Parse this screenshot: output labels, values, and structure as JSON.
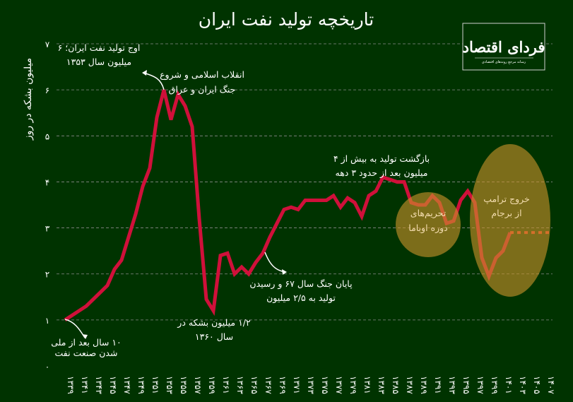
{
  "chart_data": {
    "type": "line",
    "title": "تاریخچه تولید نفت ایران",
    "ylabel": "میلیون بشکه در روز",
    "xlabel": "",
    "ylim": [
      0,
      7
    ],
    "xlim": [
      1339,
      1408
    ],
    "grid": true,
    "y_ticks": [
      "۰",
      "۱",
      "۲",
      "۳",
      "۴",
      "۵",
      "۶",
      "۷"
    ],
    "x_ticks": [
      1339,
      1341,
      1343,
      1345,
      1347,
      1349,
      1351,
      1353,
      1355,
      1357,
      1359,
      1361,
      1363,
      1365,
      1367,
      1369,
      1371,
      1373,
      1375,
      1377,
      1379,
      1381,
      1383,
      1385,
      1387,
      1389,
      1391,
      1393,
      1395,
      1397,
      1399,
      1401,
      1403,
      1405,
      1407
    ],
    "x_tick_labels": [
      "۱۳۳۹",
      "۱۳۴۱",
      "۱۳۴۳",
      "۱۳۴۵",
      "۱۳۴۷",
      "۱۳۴۹",
      "۱۳۵۱",
      "۱۳۵۳",
      "۱۳۵۵",
      "۱۳۵۷",
      "۱۳۵۹",
      "۱۳۶۱",
      "۱۳۶۳",
      "۱۳۶۵",
      "۱۳۶۷",
      "۱۳۶۹",
      "۱۳۷۱",
      "۱۳۷۳",
      "۱۳۷۵",
      "۱۳۷۷",
      "۱۳۷۹",
      "۱۳۸۱",
      "۱۳۸۳",
      "۱۳۸۵",
      "۱۳۸۷",
      "۱۳۸۹",
      "۱۳۹۱",
      "۱۳۹۳",
      "۱۳۹۵",
      "۱۳۹۷",
      "۱۳۹۹",
      "۱۴۰۱",
      "۱۴۰۳",
      "۱۴۰۵",
      "۱۴۰۷"
    ],
    "series": [
      {
        "x": [
          1339,
          1340,
          1341,
          1342,
          1343,
          1344,
          1345,
          1346,
          1347,
          1348,
          1349,
          1350,
          1351,
          1352,
          1353,
          1354,
          1355,
          1356,
          1357,
          1358,
          1359,
          1360,
          1361,
          1362,
          1363,
          1364,
          1365,
          1366,
          1367,
          1368,
          1369,
          1370,
          1371,
          1372,
          1373,
          1374,
          1375,
          1376,
          1377,
          1378,
          1379,
          1380,
          1381,
          1382,
          1383,
          1384,
          1385,
          1386,
          1387,
          1388,
          1389,
          1390,
          1391,
          1392,
          1393,
          1394,
          1395,
          1396,
          1397,
          1398,
          1399,
          1400,
          1401,
          1402
        ],
        "values": [
          1.0,
          1.1,
          1.2,
          1.3,
          1.45,
          1.6,
          1.75,
          2.1,
          2.3,
          2.8,
          3.3,
          3.9,
          4.3,
          5.4,
          6.0,
          5.35,
          5.9,
          5.65,
          5.2,
          3.2,
          1.45,
          1.2,
          2.4,
          2.45,
          2.0,
          2.15,
          2.0,
          2.25,
          2.45,
          2.8,
          3.1,
          3.4,
          3.45,
          3.4,
          3.6,
          3.6,
          3.6,
          3.6,
          3.7,
          3.45,
          3.65,
          3.55,
          3.25,
          3.7,
          3.8,
          4.1,
          4.05,
          4.0,
          4.0,
          3.55,
          3.5,
          3.5,
          3.7,
          3.55,
          3.1,
          3.15,
          3.6,
          3.8,
          3.55,
          2.35,
          1.95,
          2.35,
          2.5,
          2.9
        ],
        "color": "#d0103a",
        "style": "solid"
      },
      {
        "x": [
          1402,
          1408
        ],
        "values": [
          2.9,
          2.9
        ],
        "color": "#e8392c",
        "style": "dotted"
      }
    ],
    "annotations": {
      "peak": [
        "اوج تولید نفت ایران؛ ۶",
        "میلیون سال ۱۳۵۳"
      ],
      "revolution": [
        "انقلاب اسلامی و شروع",
        "جنگ ایران و عراق"
      ],
      "low": [
        "۱/۲ میلیون بشکه در",
        "سال ۱۳۶۰"
      ],
      "war_end": [
        "پایان جنگ سال ۶۷ و رسیدن",
        "تولید به ۲/۵ میلیون"
      ],
      "return": [
        "بازگشت تولید به بیش از ۴",
        "میلیون بعد از حدود ۳ دهه"
      ],
      "obama": [
        "تحریم‌های",
        "دوره اوباما"
      ],
      "trump": [
        "خروج ترامپ",
        "از برجام"
      ],
      "nationalization": [
        "۱۰ سال بعد از ملی",
        "شدن صنعت نفت"
      ]
    },
    "highlight_color": "#c8922a"
  },
  "logo": {
    "name": "فردای اقتصاد",
    "tagline": "رسانه مرجع روندهای اقتصادی"
  }
}
